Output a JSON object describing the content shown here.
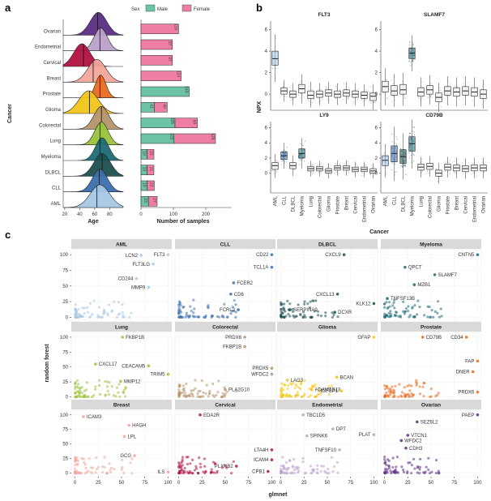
{
  "panel_labels": {
    "a": "a",
    "b": "b",
    "c": "c"
  },
  "legend": {
    "title": "Sex",
    "items": [
      {
        "label": "Male",
        "color": "#6cc3a6"
      },
      {
        "label": "Female",
        "color": "#ef7fa2"
      }
    ]
  },
  "cancer_colors": {
    "Ovarian": "#5b2c83",
    "Endometrial": "#b9a1c9",
    "Cervical": "#b0123f",
    "Breast": "#f2a69a",
    "Prostate": "#e86b1f",
    "Glioma": "#f2c418",
    "Colorectal": "#b5936a",
    "Lung": "#9ac23c",
    "Myeloma": "#1d6b76",
    "DLBCL": "#1d4f50",
    "CLL": "#3a6fb0",
    "AML": "#a7c7e4"
  },
  "chart_data": [
    {
      "id": "a-ridge",
      "type": "area",
      "subtype": "ridgeline",
      "ylabel": "Cancer",
      "xlabel": "Age",
      "xticks": [
        20,
        40,
        60,
        80
      ],
      "xlim": [
        18,
        98
      ],
      "categories": [
        "Ovarian",
        "Endometrial",
        "Cervical",
        "Breast",
        "Prostate",
        "Glioma",
        "Colorectal",
        "Lung",
        "Myeloma",
        "DLBCL",
        "CLL",
        "AML"
      ],
      "medians": [
        64,
        67,
        45,
        58,
        67,
        53,
        69,
        67,
        67,
        70,
        66,
        63
      ],
      "peaks": [
        65,
        68,
        43,
        63,
        68,
        52,
        69,
        69,
        70,
        70,
        67,
        67
      ],
      "spreads": [
        11,
        9,
        11,
        12,
        7,
        13,
        10,
        9,
        9,
        11,
        10,
        13
      ]
    },
    {
      "id": "a-samples",
      "type": "bar",
      "xlabel": "Number of samples",
      "xticks": [
        0,
        100,
        200
      ],
      "xlim": [
        0,
        280
      ],
      "categories": [
        "Ovarian",
        "Endometrial",
        "Cervical",
        "Breast",
        "Prostate",
        "Glioma",
        "Colorectal",
        "Lung",
        "Myeloma",
        "DLBCL",
        "CLL",
        "AML"
      ],
      "series": [
        {
          "name": "Male",
          "values": [
            0,
            0,
            0,
            0,
            149,
            41,
            105,
            102,
            19,
            19,
            19,
            23
          ]
        },
        {
          "name": "Female",
          "values": [
            116,
            97,
            97,
            124,
            0,
            40,
            69,
            128,
            21,
            21,
            22,
            27
          ]
        }
      ],
      "bar_labels": [
        [
          "",
          "116"
        ],
        [
          "",
          "97"
        ],
        [
          "",
          "97"
        ],
        [
          "",
          "124"
        ],
        [
          "149",
          ""
        ],
        [
          "41",
          "40"
        ],
        [
          "105",
          "69"
        ],
        [
          "102",
          "128"
        ],
        [
          "19",
          "21"
        ],
        [
          "19",
          "21"
        ],
        [
          "19",
          "22"
        ],
        [
          "23",
          "27"
        ]
      ]
    },
    {
      "id": "b-boxplots",
      "type": "scatter",
      "subtype": "boxplot",
      "ylabel": "NPX",
      "xlabel": "Cancer",
      "categories": [
        "AML",
        "CLL",
        "DLBCL",
        "Myeloma",
        "Lung",
        "Colorectal",
        "Glioma",
        "Prostate",
        "Breast",
        "Cervical",
        "Endometrial",
        "Ovarian"
      ],
      "facets": [
        {
          "title": "FLT3",
          "yticks": [
            0,
            2,
            4,
            6
          ],
          "ylim": [
            -1.5,
            6.8
          ],
          "medians": [
            3.3,
            0.3,
            0.0,
            0.5,
            -0.1,
            0.0,
            0.1,
            0.0,
            0.1,
            0.0,
            -0.1,
            -0.2
          ],
          "q1": [
            2.7,
            0.0,
            -0.3,
            0.1,
            -0.4,
            -0.3,
            -0.2,
            -0.3,
            -0.2,
            -0.3,
            -0.4,
            -0.6
          ],
          "q3": [
            4.0,
            0.6,
            0.3,
            0.9,
            0.3,
            0.3,
            0.4,
            0.3,
            0.4,
            0.3,
            0.2,
            0.1
          ],
          "highlight": [
            0
          ]
        },
        {
          "title": "SLAMF7",
          "yticks": [
            0,
            2,
            4,
            6
          ],
          "ylim": [
            -1.5,
            6.8
          ],
          "medians": [
            0.7,
            0.3,
            0.4,
            3.8,
            0.2,
            0.4,
            -0.3,
            0.3,
            0.2,
            0.3,
            0.2,
            0.0
          ],
          "q1": [
            0.2,
            -0.1,
            0.0,
            3.3,
            -0.2,
            0.0,
            -0.7,
            -0.1,
            -0.2,
            -0.1,
            -0.2,
            -0.4
          ],
          "q3": [
            1.2,
            0.8,
            0.9,
            4.3,
            0.6,
            0.8,
            0.1,
            0.7,
            0.6,
            0.7,
            0.6,
            0.4
          ],
          "highlight": [
            3
          ]
        },
        {
          "title": "LY9",
          "yticks": [
            0,
            2,
            4,
            6
          ],
          "ylim": [
            -2.6,
            6.8
          ],
          "medians": [
            1.0,
            2.3,
            1.0,
            2.6,
            0.6,
            0.6,
            0.3,
            0.7,
            0.7,
            0.5,
            0.5,
            0.3
          ],
          "q1": [
            0.5,
            1.8,
            0.6,
            2.0,
            0.3,
            0.3,
            0.0,
            0.4,
            0.4,
            0.2,
            0.2,
            0.0
          ],
          "q3": [
            1.4,
            2.8,
            1.4,
            3.2,
            0.9,
            0.9,
            0.6,
            1.0,
            1.0,
            0.8,
            0.8,
            0.6
          ],
          "highlight": [
            1,
            3
          ]
        },
        {
          "title": "CD79B",
          "yticks": [
            0,
            2,
            4,
            6
          ],
          "ylim": [
            -2.6,
            6.8
          ],
          "medians": [
            1.7,
            2.6,
            2.2,
            3.9,
            0.8,
            0.9,
            0.0,
            0.8,
            0.7,
            0.6,
            0.7,
            0.7
          ],
          "q1": [
            1.0,
            1.5,
            1.3,
            2.9,
            0.4,
            0.5,
            -0.4,
            0.4,
            0.3,
            0.2,
            0.3,
            0.3
          ],
          "q3": [
            2.3,
            3.6,
            3.1,
            4.8,
            1.2,
            1.3,
            0.4,
            1.2,
            1.1,
            1.0,
            1.1,
            1.1
          ],
          "highlight": [
            0,
            1,
            2,
            3
          ]
        }
      ]
    },
    {
      "id": "c-importance",
      "type": "scatter",
      "xlabel": "glmnet",
      "ylabel": "random forest",
      "xticks": [
        0,
        25,
        50,
        75,
        100
      ],
      "yticks": [
        0,
        25,
        50,
        75,
        100
      ],
      "xlim": [
        -4,
        104
      ],
      "ylim": [
        -6,
        108
      ],
      "facets": [
        {
          "name": "AML",
          "labels": [
            {
              "text": "LCN2",
              "x": 71,
              "y": 99
            },
            {
              "text": "FLT3",
              "x": 100,
              "y": 100
            },
            {
              "text": "FLT3LG",
              "x": 84,
              "y": 85
            },
            {
              "text": "CD244",
              "x": 66,
              "y": 62
            },
            {
              "text": "MMP9",
              "x": 79,
              "y": 48
            }
          ]
        },
        {
          "name": "CLL",
          "labels": [
            {
              "text": "CD22",
              "x": 100,
              "y": 100
            },
            {
              "text": "TCL1A",
              "x": 100,
              "y": 80
            },
            {
              "text": "FCER2",
              "x": 59,
              "y": 55
            },
            {
              "text": "CD6",
              "x": 56,
              "y": 37
            },
            {
              "text": "FCRL2",
              "x": 64,
              "y": 12
            }
          ]
        },
        {
          "name": "DLBCL",
          "labels": [
            {
              "text": "CXCL9",
              "x": 68,
              "y": 100
            },
            {
              "text": "CXCL13",
              "x": 61,
              "y": 37
            },
            {
              "text": "KLK12",
              "x": 100,
              "y": 22
            },
            {
              "text": "SERPINA9",
              "x": 10,
              "y": 12
            },
            {
              "text": "DCXR",
              "x": 58,
              "y": 8
            }
          ]
        },
        {
          "name": "Myeloma",
          "labels": [
            {
              "text": "CNTN5",
              "x": 100,
              "y": 100
            },
            {
              "text": "QPCT",
              "x": 22,
              "y": 80
            },
            {
              "text": "SLAMF7",
              "x": 54,
              "y": 68
            },
            {
              "text": "MZB1",
              "x": 32,
              "y": 52
            },
            {
              "text": "TNFSF13B",
              "x": 3,
              "y": 30
            }
          ]
        },
        {
          "name": "Lung",
          "labels": [
            {
              "text": "FKBP1B",
              "x": 51,
              "y": 100
            },
            {
              "text": "CXCL17",
              "x": 22,
              "y": 55
            },
            {
              "text": "CEACAM5",
              "x": 79,
              "y": 52
            },
            {
              "text": "TRIM5",
              "x": 100,
              "y": 38
            },
            {
              "text": "MMP12",
              "x": 49,
              "y": 26
            }
          ]
        },
        {
          "name": "Colorectal",
          "labels": [
            {
              "text": "PRDX6",
              "x": 71,
              "y": 100
            },
            {
              "text": "FKBP1B",
              "x": 71,
              "y": 84
            },
            {
              "text": "PRDX5",
              "x": 100,
              "y": 48
            },
            {
              "text": "WFDC2",
              "x": 100,
              "y": 38
            },
            {
              "text": "PLA2G10",
              "x": 50,
              "y": 12
            }
          ]
        },
        {
          "name": "Glioma",
          "labels": [
            {
              "text": "GFAP",
              "x": 100,
              "y": 100
            },
            {
              "text": "LAG3",
              "x": 7,
              "y": 28
            },
            {
              "text": "BCAN",
              "x": 60,
              "y": 33
            },
            {
              "text": "ADAMTS13",
              "x": 33,
              "y": 12
            },
            {
              "text": "IGFBP1",
              "x": 65,
              "y": 10
            }
          ]
        },
        {
          "name": "Prostate",
          "labels": [
            {
              "text": "CD79B",
              "x": 41,
              "y": 100
            },
            {
              "text": "CD34",
              "x": 88,
              "y": 100
            },
            {
              "text": "FAP",
              "x": 100,
              "y": 60
            },
            {
              "text": "DNER",
              "x": 95,
              "y": 42
            },
            {
              "text": "PRDX6",
              "x": 100,
              "y": 8
            }
          ]
        },
        {
          "name": "Breast",
          "labels": [
            {
              "text": "ICAM3",
              "x": 9,
              "y": 97
            },
            {
              "text": "HAGH",
              "x": 58,
              "y": 82
            },
            {
              "text": "LPL",
              "x": 53,
              "y": 63
            },
            {
              "text": "GCG",
              "x": 64,
              "y": 30
            },
            {
              "text": "ILS",
              "x": 100,
              "y": 2
            }
          ]
        },
        {
          "name": "Cervical",
          "labels": [
            {
              "text": "EDA2R",
              "x": 23,
              "y": 100
            },
            {
              "text": "LTA4H",
              "x": 100,
              "y": 40
            },
            {
              "text": "ICAM4",
              "x": 100,
              "y": 23
            },
            {
              "text": "PLXNB2",
              "x": 62,
              "y": 12
            },
            {
              "text": "CPB1",
              "x": 96,
              "y": 3
            }
          ]
        },
        {
          "name": "Endometrial",
          "labels": [
            {
              "text": "TBC1D5",
              "x": 24,
              "y": 100
            },
            {
              "text": "DPT",
              "x": 56,
              "y": 76
            },
            {
              "text": "SPINK6",
              "x": 28,
              "y": 64
            },
            {
              "text": "PLAT",
              "x": 100,
              "y": 66
            },
            {
              "text": "TNFSF10",
              "x": 63,
              "y": 40
            }
          ]
        },
        {
          "name": "Ovarian",
          "labels": [
            {
              "text": "SEZ6L2",
              "x": 35,
              "y": 88
            },
            {
              "text": "PAEP",
              "x": 100,
              "y": 100
            },
            {
              "text": "VTCN1",
              "x": 25,
              "y": 65
            },
            {
              "text": "WFDC2",
              "x": 18,
              "y": 56
            },
            {
              "text": "CDH3",
              "x": 23,
              "y": 43
            }
          ]
        }
      ]
    }
  ]
}
